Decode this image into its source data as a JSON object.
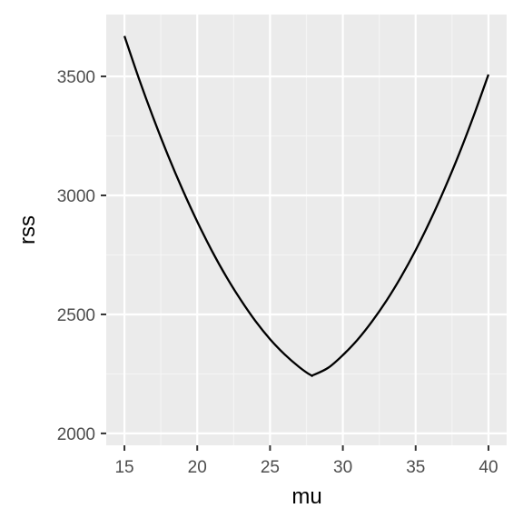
{
  "chart_data": {
    "type": "line",
    "title": "",
    "xlabel": "mu",
    "ylabel": "rss",
    "xlim": [
      13.75,
      41.25
    ],
    "ylim": [
      1950,
      3760
    ],
    "x_ticks": [
      15,
      20,
      25,
      30,
      35,
      40
    ],
    "x_tick_labels": [
      "15",
      "20",
      "25",
      "30",
      "35",
      "40"
    ],
    "y_ticks": [
      2000,
      2500,
      3000,
      3500
    ],
    "y_tick_labels": [
      "2000",
      "2500",
      "3000",
      "3500"
    ],
    "grid": true,
    "legend": "none",
    "colors": {
      "panel_background": "#ebebeb",
      "grid_major": "#ffffff",
      "grid_minor": "#f5f5f5",
      "line": "#000000",
      "tick_label": "#4d4d4d",
      "tick_mark": "#333333"
    },
    "series": [
      {
        "x": [
          15,
          16,
          17,
          18,
          19,
          20,
          21,
          22,
          23,
          24,
          25,
          26,
          27,
          27.8,
          28,
          29,
          30,
          31,
          32,
          33,
          34,
          35,
          36,
          37,
          38,
          39,
          40
        ],
        "values": [
          3670,
          3490,
          3323,
          3167,
          3023,
          2890,
          2768,
          2658,
          2560,
          2472,
          2396,
          2332,
          2279,
          2245,
          2246,
          2276,
          2329,
          2393,
          2470,
          2558,
          2658,
          2770,
          2894,
          3030,
          3177,
          3337,
          3508
        ],
        "color": "#000000"
      }
    ]
  }
}
